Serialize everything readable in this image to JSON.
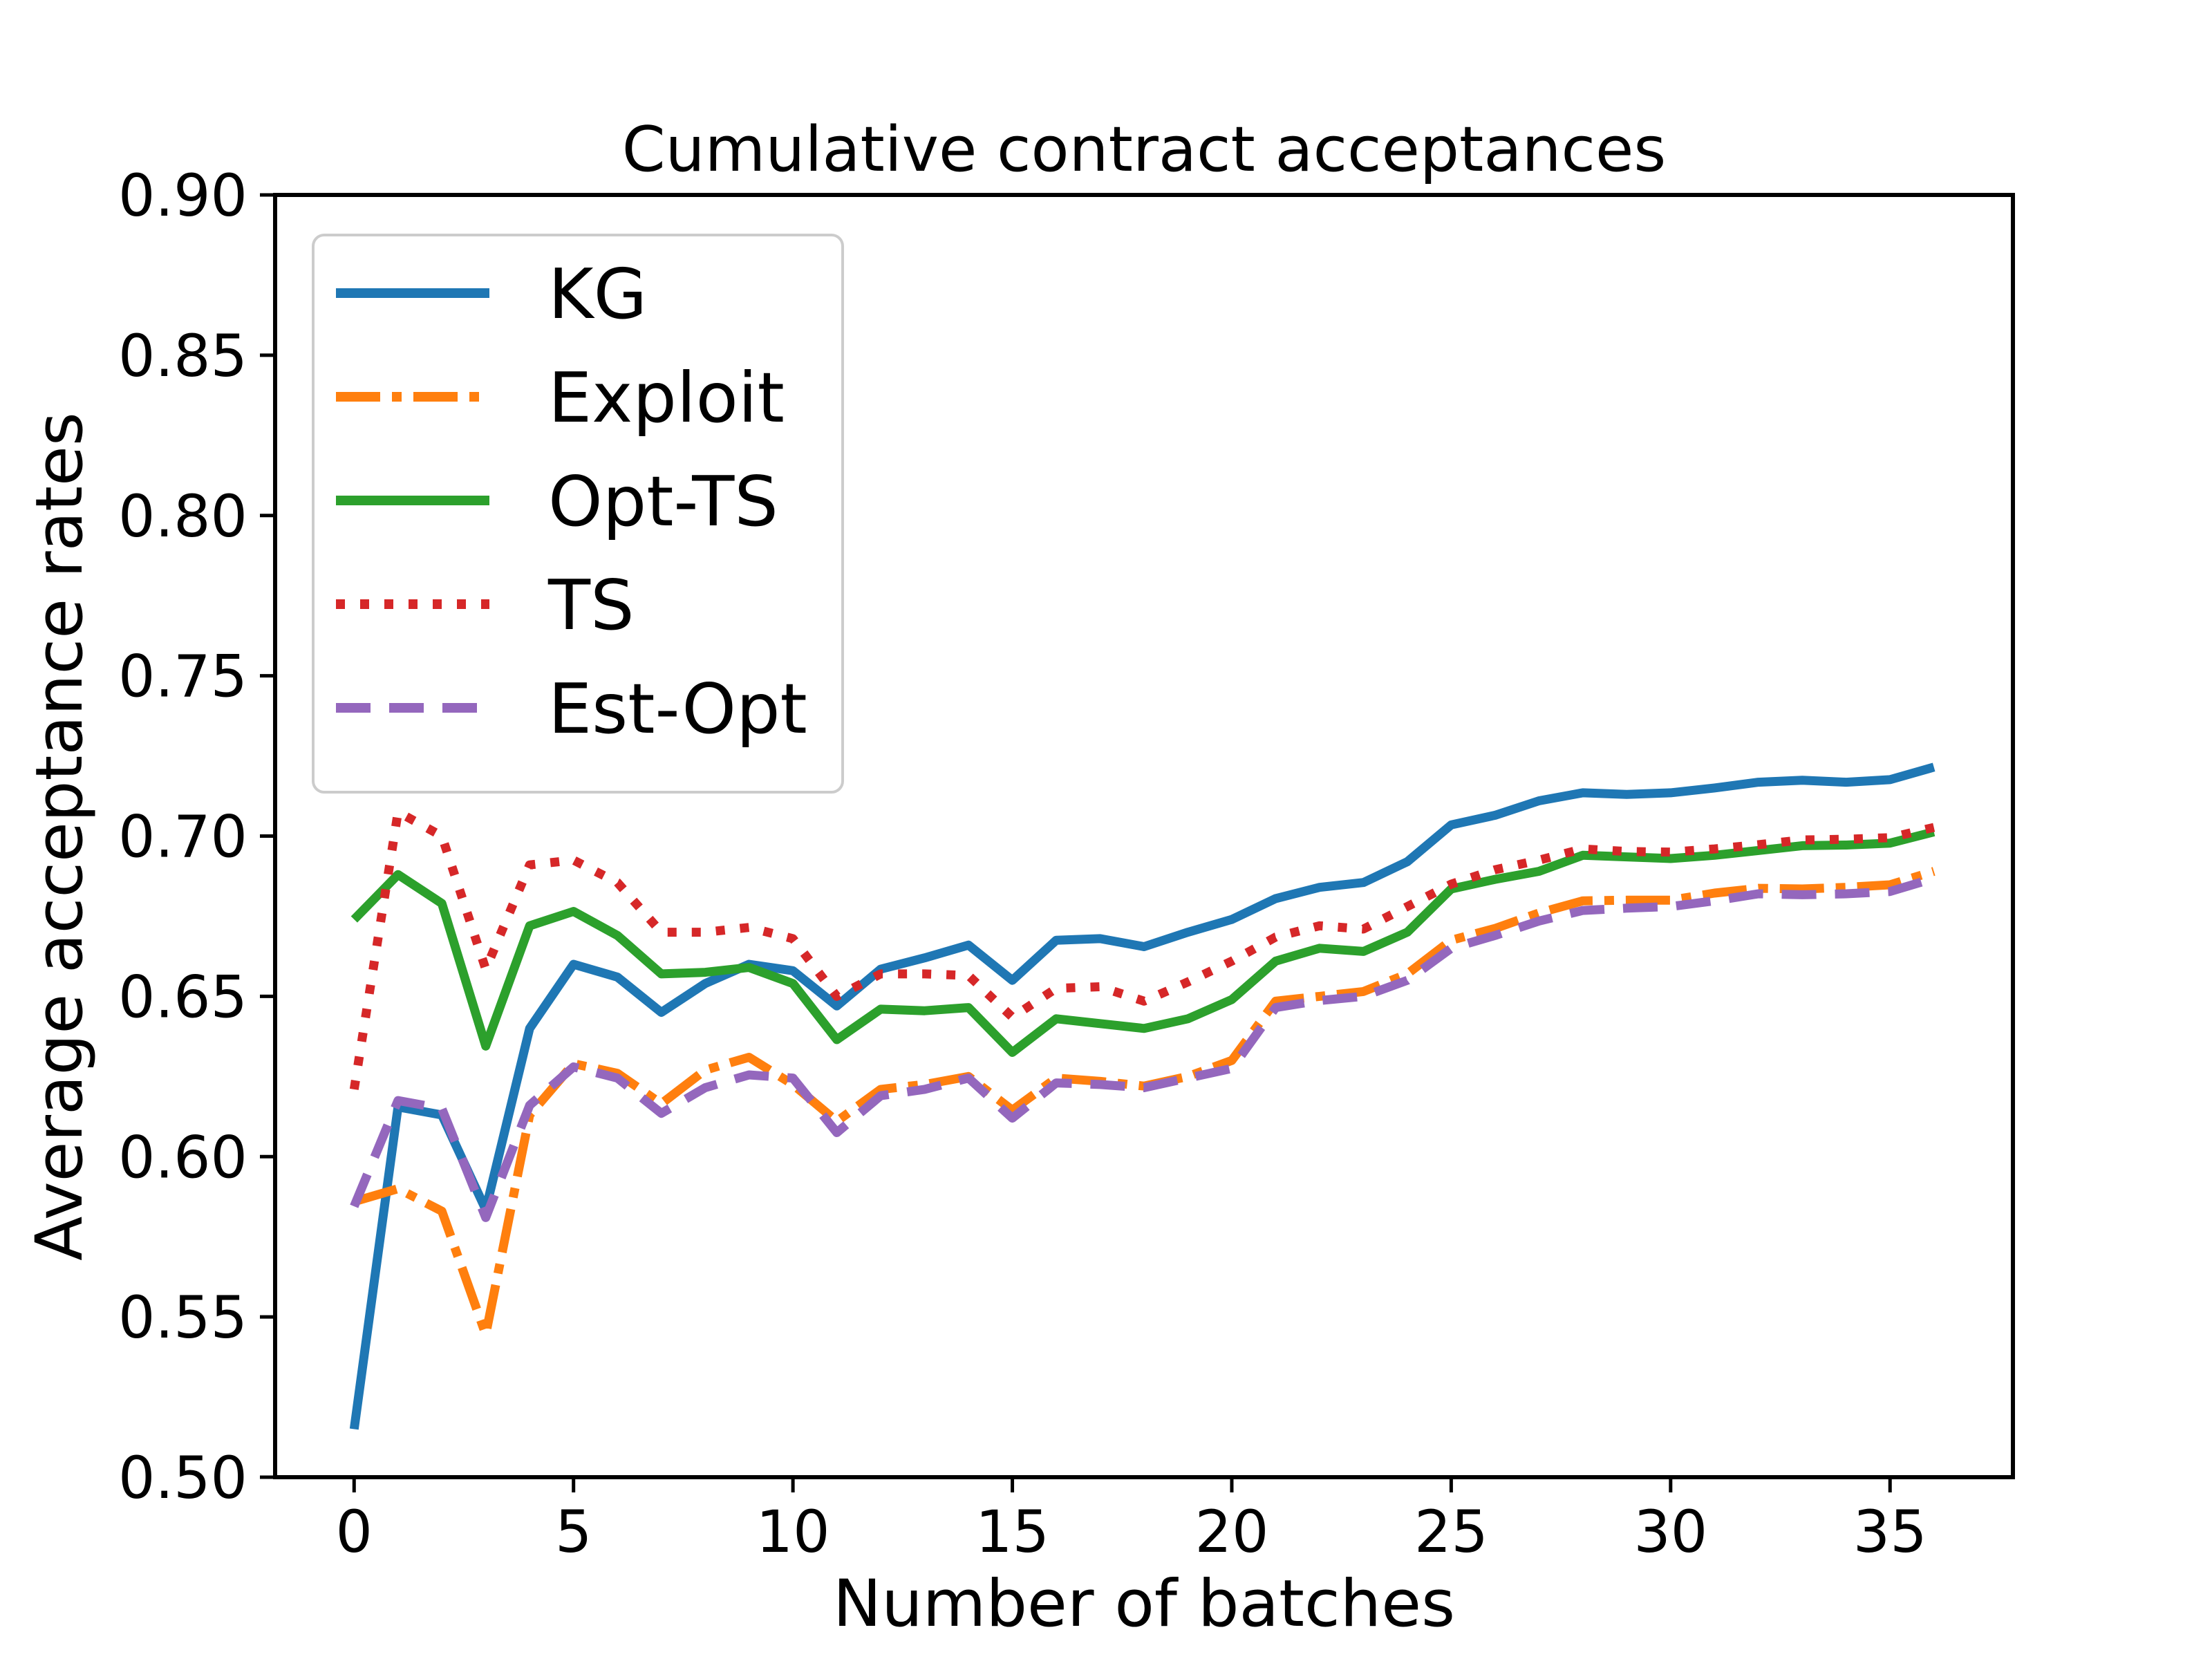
{
  "chart_data": {
    "type": "line",
    "title": "Cumulative contract acceptances",
    "xlabel": "Number of batches",
    "ylabel": "Average acceptance rates",
    "xlim": [
      -1.8,
      37.8
    ],
    "ylim": [
      0.5,
      0.9
    ],
    "xticks": [
      0,
      5,
      10,
      15,
      20,
      25,
      30,
      35
    ],
    "ytick_labels": [
      "0.50",
      "0.55",
      "0.60",
      "0.65",
      "0.70",
      "0.75",
      "0.80",
      "0.85",
      "0.90"
    ],
    "grid": false,
    "legend_position": "upper left",
    "x": [
      0,
      1,
      2,
      3,
      4,
      5,
      6,
      7,
      8,
      9,
      10,
      11,
      12,
      13,
      14,
      15,
      16,
      17,
      18,
      19,
      20,
      21,
      22,
      23,
      24,
      25,
      26,
      27,
      28,
      29,
      30,
      31,
      32,
      33,
      34,
      35,
      36
    ],
    "series": [
      {
        "name": "KG",
        "color": "#1f77b4",
        "linestyle": "solid",
        "values": [
          0.515,
          0.6155,
          0.613,
          0.5835,
          0.64,
          0.66,
          0.656,
          0.645,
          0.654,
          0.66,
          0.658,
          0.647,
          0.6585,
          0.662,
          0.666,
          0.655,
          0.6675,
          0.668,
          0.6655,
          0.67,
          0.674,
          0.6805,
          0.684,
          0.6855,
          0.692,
          0.7035,
          0.7065,
          0.711,
          0.7135,
          0.713,
          0.7135,
          0.715,
          0.7168,
          0.7174,
          0.7168,
          0.7176,
          0.7215
        ]
      },
      {
        "name": "Exploit",
        "color": "#ff7f0e",
        "linestyle": "dashdot",
        "values": [
          0.586,
          0.59,
          0.583,
          0.5445,
          0.613,
          0.629,
          0.626,
          0.6165,
          0.627,
          0.631,
          0.6225,
          0.611,
          0.621,
          0.6225,
          0.625,
          0.6145,
          0.6245,
          0.6235,
          0.622,
          0.625,
          0.63,
          0.6485,
          0.65,
          0.6515,
          0.657,
          0.6675,
          0.6712,
          0.676,
          0.6798,
          0.68,
          0.68,
          0.6822,
          0.6837,
          0.6835,
          0.684,
          0.6848,
          0.689
        ]
      },
      {
        "name": "Opt-TS",
        "color": "#2ca02c",
        "linestyle": "solid",
        "values": [
          0.674,
          0.688,
          0.679,
          0.6345,
          0.672,
          0.6765,
          0.669,
          0.657,
          0.6575,
          0.659,
          0.654,
          0.6365,
          0.646,
          0.6455,
          0.6465,
          0.6325,
          0.643,
          0.6415,
          0.64,
          0.643,
          0.649,
          0.661,
          0.665,
          0.664,
          0.67,
          0.6835,
          0.6865,
          0.689,
          0.694,
          0.6935,
          0.693,
          0.694,
          0.6955,
          0.697,
          0.6972,
          0.6978,
          0.7013
        ]
      },
      {
        "name": "TS",
        "color": "#d62728",
        "linestyle": "dotted",
        "values": [
          0.621,
          0.7075,
          0.7,
          0.6585,
          0.691,
          0.6925,
          0.6855,
          0.67,
          0.67,
          0.6715,
          0.668,
          0.65,
          0.657,
          0.657,
          0.6565,
          0.6435,
          0.6525,
          0.653,
          0.6485,
          0.6545,
          0.661,
          0.6685,
          0.672,
          0.671,
          0.678,
          0.685,
          0.6895,
          0.6925,
          0.696,
          0.6952,
          0.695,
          0.696,
          0.6973,
          0.6988,
          0.699,
          0.6995,
          0.7027
        ]
      },
      {
        "name": "Est-Opt",
        "color": "#9467bd",
        "linestyle": "dashed",
        "values": [
          0.5845,
          0.6175,
          0.615,
          0.581,
          0.616,
          0.628,
          0.6245,
          0.6135,
          0.6215,
          0.6255,
          0.6245,
          0.6075,
          0.619,
          0.621,
          0.6245,
          0.612,
          0.623,
          0.6225,
          0.6215,
          0.6245,
          0.6275,
          0.6465,
          0.6487,
          0.65,
          0.655,
          0.665,
          0.669,
          0.6735,
          0.6768,
          0.6775,
          0.678,
          0.6798,
          0.682,
          0.6817,
          0.682,
          0.6827,
          0.6868
        ]
      }
    ]
  },
  "style_colors": {
    "axis": "#000000",
    "legend_border": "#cccccc",
    "background": "#ffffff"
  }
}
